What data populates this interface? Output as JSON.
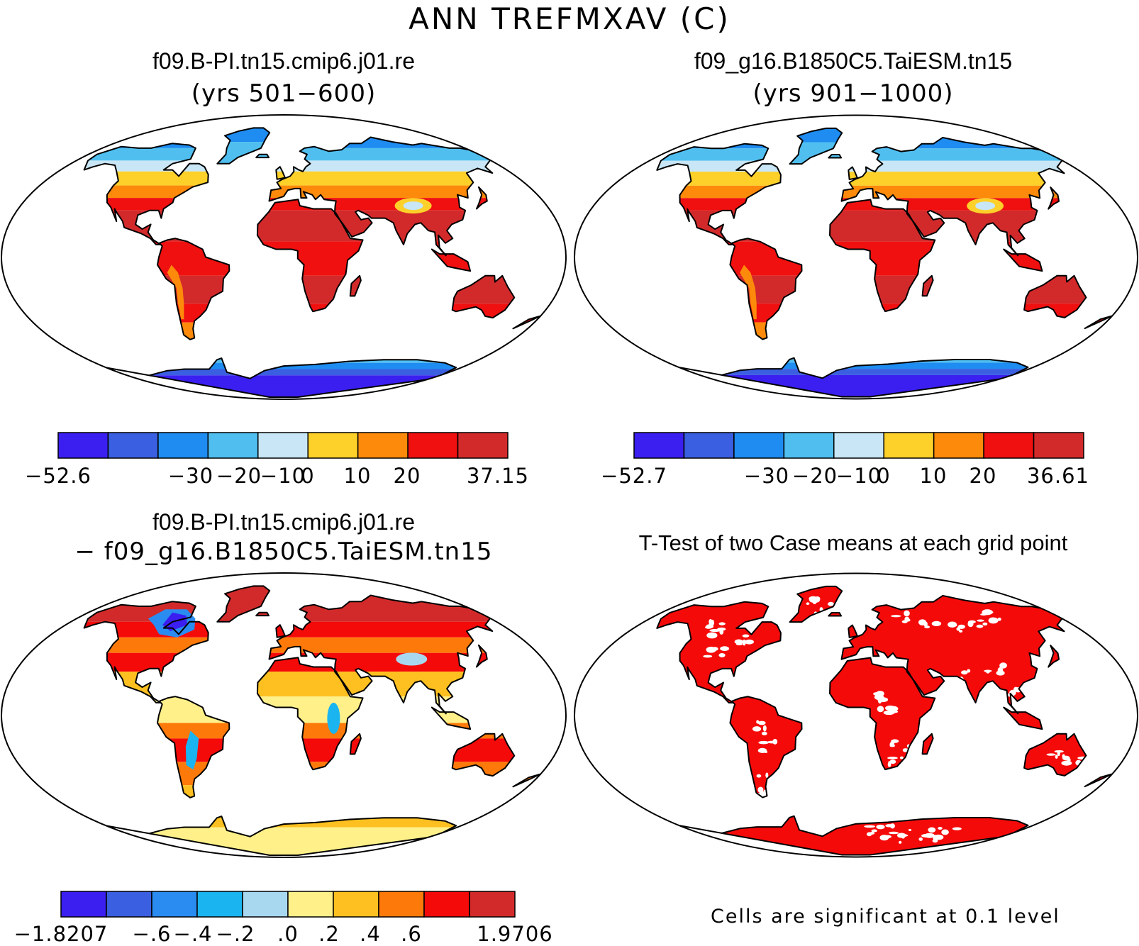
{
  "page": {
    "main_title": "ANN TREFMXAV (C)"
  },
  "panels": [
    {
      "id": "case1",
      "title": "f09.B-PI.tn15.cmip6.j01.re",
      "subtitle": "(yrs 501−600)",
      "colorbar": {
        "colors": [
          "#3a1ff0",
          "#3a5fe0",
          "#1e8cf0",
          "#50bff0",
          "#c8e6f5",
          "#fdd02a",
          "#fd8a0a",
          "#f01010",
          "#d22a2a"
        ],
        "labels": [
          "−52.6",
          "−30",
          "−20",
          "−10",
          "0",
          "10",
          "20",
          "37.15"
        ]
      }
    },
    {
      "id": "case2",
      "title": "f09_g16.B1850C5.TaiESM.tn15",
      "subtitle": "(yrs 901−1000)",
      "colorbar": {
        "colors": [
          "#3a1ff0",
          "#3a5fe0",
          "#1e8cf0",
          "#50bff0",
          "#c8e6f5",
          "#fdd02a",
          "#fd8a0a",
          "#f01010",
          "#d22a2a"
        ],
        "labels": [
          "−52.7",
          "−30",
          "−20",
          "−10",
          "0",
          "10",
          "20",
          "36.61"
        ]
      }
    },
    {
      "id": "diff",
      "title": "f09.B-PI.tn15.cmip6.j01.re",
      "subtitle": "− f09_g16.B1850C5.TaiESM.tn15",
      "colorbar": {
        "colors": [
          "#3a1ff0",
          "#3a5fe0",
          "#2a8cf0",
          "#1ab4f0",
          "#a8d8f0",
          "#fff08a",
          "#fdc020",
          "#fd7a0a",
          "#f50a0a",
          "#d22a2a"
        ],
        "labels": [
          "−1.8207",
          "−.6",
          "−.4",
          "−.2",
          ".0",
          ".2",
          ".4",
          ".6",
          "1.9706"
        ]
      }
    },
    {
      "id": "ttest",
      "title": "T-Test of two Case means at each grid point",
      "note": "Cells are significant at 0.1 level"
    }
  ],
  "colors": {
    "sig_red": "#f50a0a",
    "outline": "#000000"
  }
}
